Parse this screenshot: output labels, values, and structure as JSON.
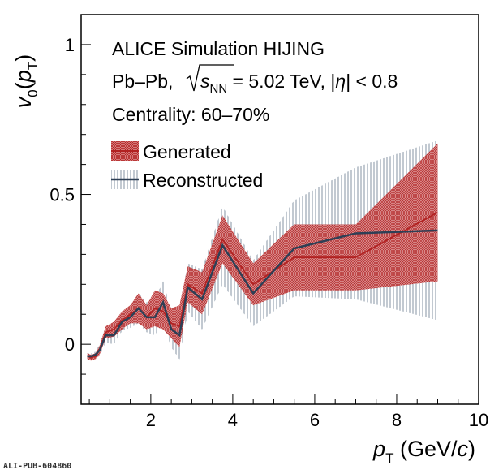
{
  "chart_data": {
    "type": "line",
    "xlim": [
      0.3,
      10
    ],
    "ylim": [
      -0.2,
      1.1
    ],
    "x_ticks": [
      "2",
      "4",
      "6",
      "8",
      "10"
    ],
    "y_ticks": [
      "0",
      "0.5",
      "1"
    ],
    "xlabel": {
      "main": "p",
      "sub": "T",
      "unit": " (GeV/",
      "unit_italic": "c",
      "close": ")"
    },
    "ylabel": {
      "v": "v",
      "vsub": "0",
      "open": "(",
      "p": "p",
      "psub": "T",
      "close": ")"
    },
    "annotations": {
      "line1": "ALICE Simulation HIJING",
      "line2_pre": "Pb–Pb, ",
      "line2_s": "s",
      "line2_sub": "NN",
      "line2_mid": " = 5.02 TeV, |",
      "line2_eta": "η",
      "line2_post": "| < 0.8",
      "line3": "Centrality: 60–70%"
    },
    "series": [
      {
        "name": "Generated",
        "color": "#b22222",
        "x": [
          0.45,
          0.55,
          0.65,
          0.75,
          0.9,
          1.1,
          1.3,
          1.5,
          1.7,
          1.9,
          2.1,
          2.3,
          2.5,
          2.7,
          2.9,
          3.25,
          3.75,
          4.5,
          5.5,
          7.0,
          9.0
        ],
        "y": [
          -0.04,
          -0.045,
          -0.04,
          -0.02,
          0.04,
          0.05,
          0.08,
          0.1,
          0.12,
          0.09,
          0.12,
          0.11,
          0.07,
          0.06,
          0.2,
          0.17,
          0.35,
          0.2,
          0.29,
          0.29,
          0.44
        ],
        "err": [
          0.01,
          0.01,
          0.01,
          0.015,
          0.02,
          0.025,
          0.03,
          0.03,
          0.05,
          0.04,
          0.06,
          0.06,
          0.05,
          0.07,
          0.06,
          0.07,
          0.08,
          0.07,
          0.11,
          0.11,
          0.23
        ]
      },
      {
        "name": "Reconstructed",
        "color": "#2e3f55",
        "x": [
          0.45,
          0.55,
          0.65,
          0.75,
          0.9,
          1.1,
          1.3,
          1.5,
          1.7,
          1.9,
          2.1,
          2.3,
          2.5,
          2.7,
          2.9,
          3.25,
          3.75,
          4.5,
          5.5,
          7.0,
          9.0
        ],
        "y": [
          -0.04,
          -0.04,
          -0.035,
          -0.02,
          0.03,
          0.03,
          0.075,
          0.09,
          0.12,
          0.09,
          0.09,
          0.14,
          0.05,
          0.03,
          0.19,
          0.15,
          0.33,
          0.17,
          0.32,
          0.37,
          0.38
        ],
        "err": [
          0.01,
          0.01,
          0.01,
          0.02,
          0.025,
          0.03,
          0.03,
          0.035,
          0.05,
          0.05,
          0.06,
          0.07,
          0.06,
          0.08,
          0.08,
          0.1,
          0.13,
          0.11,
          0.16,
          0.22,
          0.3
        ]
      }
    ],
    "legend": {
      "position": "top-left"
    },
    "footer": "ALI-PUB-604860"
  }
}
